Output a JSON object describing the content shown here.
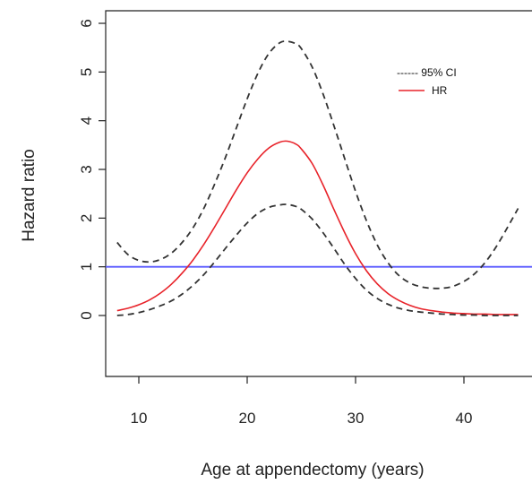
{
  "chart_data": {
    "type": "line",
    "xlabel": "Age at appendectomy (years)",
    "ylabel": "Hazard ratio",
    "xlim": [
      6,
      45
    ],
    "ylim": [
      -1.3,
      6.1
    ],
    "x_ticks": [
      10,
      20,
      30,
      40
    ],
    "y_ticks": [
      0,
      1,
      2,
      3,
      4,
      5,
      6
    ],
    "legend": {
      "placement": "top-right",
      "entries": [
        {
          "label": "------ 95% CI"
        },
        {
          "label": "HR",
          "color": "#e8232a"
        }
      ]
    },
    "reference_line": {
      "y": 1,
      "color": "#5a5aff"
    },
    "series": [
      {
        "name": "95% CI",
        "role": "upper",
        "style": "dashed",
        "color": "#333333",
        "x": [
          8,
          9,
          10,
          11,
          12,
          13,
          14,
          15,
          16,
          17,
          18,
          19,
          20,
          21,
          22,
          23,
          23.7,
          24.5,
          25,
          26,
          27,
          28,
          29,
          30,
          31,
          32,
          33,
          34,
          35,
          36,
          37,
          38,
          39,
          40,
          41,
          42,
          43,
          44,
          45
        ],
        "y": [
          1.5,
          1.25,
          1.13,
          1.1,
          1.15,
          1.28,
          1.5,
          1.8,
          2.2,
          2.7,
          3.25,
          3.85,
          4.45,
          4.98,
          5.38,
          5.6,
          5.63,
          5.58,
          5.48,
          5.1,
          4.55,
          3.9,
          3.22,
          2.55,
          1.95,
          1.45,
          1.08,
          0.82,
          0.67,
          0.59,
          0.56,
          0.56,
          0.6,
          0.7,
          0.86,
          1.1,
          1.42,
          1.8,
          2.2
        ]
      },
      {
        "name": "HR",
        "role": "estimate",
        "style": "solid",
        "color": "#e8232a",
        "x": [
          8,
          9,
          10,
          11,
          12,
          13,
          14,
          15,
          16,
          17,
          18,
          19,
          20,
          21,
          22,
          23,
          23.7,
          24.5,
          25,
          26,
          27,
          28,
          29,
          30,
          31,
          32,
          33,
          34,
          35,
          36,
          37,
          38,
          39,
          40,
          41,
          42,
          43,
          44,
          45
        ],
        "y": [
          0.1,
          0.15,
          0.22,
          0.32,
          0.46,
          0.64,
          0.87,
          1.14,
          1.46,
          1.82,
          2.2,
          2.58,
          2.93,
          3.22,
          3.44,
          3.56,
          3.58,
          3.52,
          3.42,
          3.12,
          2.68,
          2.18,
          1.7,
          1.27,
          0.92,
          0.65,
          0.45,
          0.31,
          0.21,
          0.14,
          0.1,
          0.07,
          0.05,
          0.04,
          0.03,
          0.03,
          0.02,
          0.02,
          0.02
        ]
      },
      {
        "name": "95% CI",
        "role": "lower",
        "style": "dashed",
        "color": "#333333",
        "x": [
          8,
          9,
          10,
          11,
          12,
          13,
          14,
          15,
          16,
          17,
          18,
          19,
          20,
          21,
          22,
          23,
          23.7,
          24.5,
          25,
          26,
          27,
          28,
          29,
          30,
          31,
          32,
          33,
          34,
          35,
          36,
          37,
          38,
          39,
          40,
          41,
          42,
          43,
          44,
          45
        ],
        "y": [
          0.0,
          0.02,
          0.06,
          0.12,
          0.2,
          0.3,
          0.44,
          0.62,
          0.84,
          1.1,
          1.38,
          1.65,
          1.9,
          2.1,
          2.22,
          2.27,
          2.28,
          2.24,
          2.18,
          1.98,
          1.7,
          1.38,
          1.05,
          0.76,
          0.52,
          0.35,
          0.23,
          0.15,
          0.1,
          0.07,
          0.05,
          0.03,
          0.02,
          0.01,
          0.01,
          0.0,
          0.0,
          0.0,
          0.0
        ]
      }
    ]
  }
}
